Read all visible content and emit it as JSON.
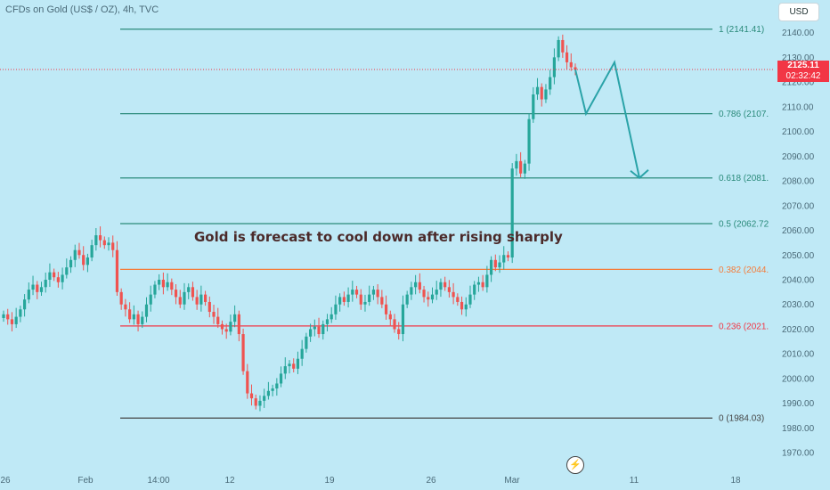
{
  "header": {
    "symbol": "CFDs on Gold (US$ / OZ), 4h, TVC",
    "currency": "USD"
  },
  "price_badge": {
    "price": "2125.11",
    "countdown": "02:32:42"
  },
  "colors": {
    "background": "#bfe9f6",
    "up_candle": "#26a69a",
    "down_candle": "#ef5350",
    "fib_line": "#2a8a7a",
    "fib_0382": "#f57c3a",
    "fib_0236": "#f23645",
    "fib_0": "#444444",
    "projection": "#2aa3a8"
  },
  "icons": {
    "lightning": "lightning-icon"
  },
  "chart_data": {
    "type": "candlestick",
    "title": "",
    "annotation": "Gold is forecast to cool down after rising sharply",
    "ylim": [
      1965,
      2146
    ],
    "y_ticks": [
      2140,
      2130,
      2120,
      2110,
      2100,
      2090,
      2080,
      2070,
      2060,
      2050,
      2040,
      2030,
      2020,
      2010,
      2000,
      1990,
      1980,
      1970
    ],
    "x_ticks": [
      "26",
      "Feb",
      "14:00",
      "12",
      "19",
      "26",
      "Mar",
      "11",
      "18"
    ],
    "fib_levels": [
      {
        "ratio": 1,
        "price": 2141.41,
        "label": "1 (2141.41)"
      },
      {
        "ratio": 0.786,
        "price": 2107.2,
        "label": "0.786 (2107."
      },
      {
        "ratio": 0.618,
        "price": 2081.2,
        "label": "0.618 (2081."
      },
      {
        "ratio": 0.5,
        "price": 2062.72,
        "label": "0.5 (2062.72"
      },
      {
        "ratio": 0.382,
        "price": 2044.2,
        "label": "0.382 (2044."
      },
      {
        "ratio": 0.236,
        "price": 2021.3,
        "label": "0.236 (2021."
      },
      {
        "ratio": 0,
        "price": 1984.03,
        "label": "0 (1984.03)"
      }
    ],
    "current_price": 2125.11,
    "close_series": [
      2026,
      2024,
      2022,
      2025,
      2028,
      2032,
      2036,
      2038,
      2035,
      2037,
      2040,
      2043,
      2041,
      2039,
      2042,
      2045,
      2048,
      2052,
      2050,
      2046,
      2049,
      2054,
      2058,
      2056,
      2054,
      2055,
      2052,
      2035,
      2030,
      2028,
      2024,
      2026,
      2022,
      2025,
      2030,
      2034,
      2038,
      2040,
      2037,
      2039,
      2036,
      2033,
      2030,
      2035,
      2037,
      2033,
      2030,
      2034,
      2031,
      2027,
      2025,
      2022,
      2020,
      2019,
      2023,
      2026,
      2018,
      2003,
      1994,
      1992,
      1989,
      1991,
      1993,
      1995,
      1996,
      1998,
      2002,
      2005,
      2006,
      2004,
      2008,
      2012,
      2017,
      2020,
      2021,
      2018,
      2022,
      2024,
      2026,
      2030,
      2033,
      2031,
      2034,
      2036,
      2034,
      2030,
      2031,
      2034,
      2036,
      2033,
      2030,
      2026,
      2024,
      2020,
      2018,
      2030,
      2034,
      2037,
      2039,
      2036,
      2033,
      2032,
      2034,
      2036,
      2039,
      2037,
      2035,
      2033,
      2031,
      2028,
      2030,
      2034,
      2038,
      2039,
      2037,
      2042,
      2048,
      2045,
      2047,
      2050,
      2049,
      2085,
      2088,
      2083,
      2087,
      2105,
      2115,
      2118,
      2113,
      2117,
      2122,
      2130,
      2137,
      2132,
      2128,
      2126,
      2125
    ],
    "projection_path": [
      [
        2125.11,
        0
      ],
      [
        2107.2,
        3
      ],
      [
        2128.0,
        11
      ],
      [
        2081.2,
        18
      ]
    ]
  }
}
